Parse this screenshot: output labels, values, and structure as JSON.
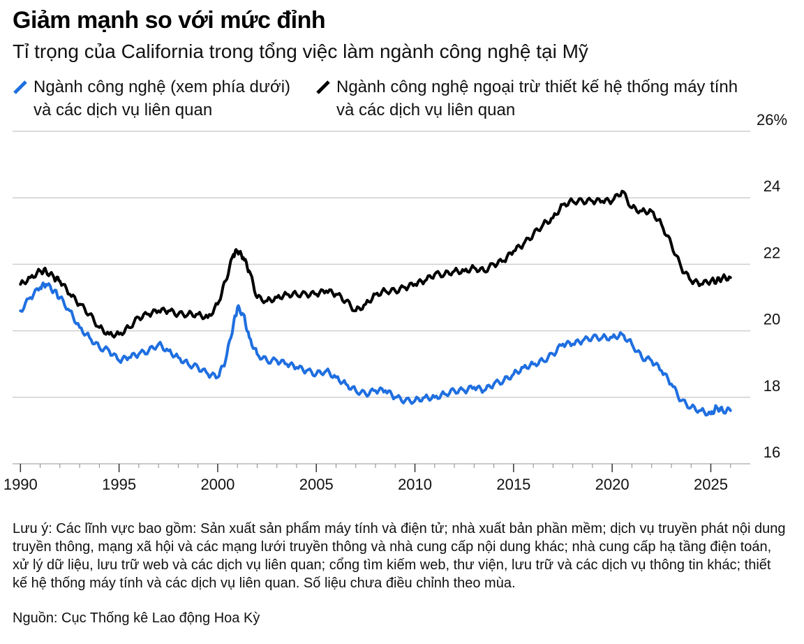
{
  "title": "Giảm mạnh so với mức đỉnh",
  "subtitle": "Tỉ trọng của California trong tổng việc làm ngành công nghệ tại Mỹ",
  "legend": [
    {
      "label_line1": "Ngành công nghệ (xem phía dưới)",
      "label_line2": "và các dịch vụ liên quan",
      "color": "#1f6fe0",
      "icon": "slash-line-icon"
    },
    {
      "label_line1": "Ngành công nghệ ngoại trừ thiết kế hệ thống máy tính",
      "label_line2": "và các dịch vụ liên quan",
      "color": "#000000",
      "icon": "slash-line-icon"
    }
  ],
  "note": "Lưu ý: Các lĩnh vực bao gồm: Sản xuất sản phẩm máy tính và điện tử; nhà xuất bản phần mềm; dịch vụ truyền phát nội dung truyền thông, mạng xã hội và các mạng lưới truyền thông và nhà cung cấp nội dung khác; nhà cung cấp hạ tầng điện toán, xử lý dữ liệu, lưu trữ web và các dịch vụ liên quan; cổng tìm kiếm web, thư viện, lưu trữ và các dịch vụ thông tin khác; thiết kế hệ thống máy tính và các dịch vụ liên quan. Số liệu chưa điều chỉnh theo mùa.",
  "source": "Nguồn: Cục Thống kê Lao động Hoa Kỳ",
  "chart_data": {
    "type": "line",
    "title": "Giảm mạnh so với mức đỉnh",
    "subtitle": "Tỉ trọng của California trong tổng việc làm ngành công nghệ tại Mỹ",
    "xlabel": "",
    "ylabel": "",
    "xlim": [
      1989.6,
      2027.0
    ],
    "ylim": [
      16,
      26
    ],
    "y_ticks": [
      16,
      18,
      20,
      22,
      24,
      26
    ],
    "y_tick_labels": [
      "16",
      "18",
      "20",
      "22",
      "24",
      "26%"
    ],
    "x_ticks": [
      1990,
      1995,
      2000,
      2005,
      2010,
      2015,
      2020,
      2025
    ],
    "x_tick_labels": [
      "1990",
      "1995",
      "2000",
      "2005",
      "2010",
      "2015",
      "2020",
      "2025"
    ],
    "grid": true,
    "series": [
      {
        "name": "Ngành công nghệ (xem phía dưới) và các dịch vụ liên quan",
        "color": "#1f6fe0",
        "x": [
          1990.0,
          1990.5,
          1991.0,
          1991.3,
          1991.7,
          1992.0,
          1992.5,
          1993.0,
          1993.5,
          1994.0,
          1994.5,
          1995.0,
          1995.5,
          1996.0,
          1996.5,
          1997.0,
          1997.5,
          1998.0,
          1998.5,
          1999.0,
          1999.5,
          2000.0,
          2000.4,
          2000.8,
          2001.0,
          2001.3,
          2001.6,
          2002.0,
          2002.5,
          2003.0,
          2003.5,
          2004.0,
          2004.5,
          2005.0,
          2005.5,
          2006.0,
          2006.5,
          2007.0,
          2007.5,
          2008.0,
          2008.5,
          2009.0,
          2009.5,
          2010.0,
          2010.5,
          2011.0,
          2011.5,
          2012.0,
          2012.5,
          2013.0,
          2013.5,
          2014.0,
          2014.5,
          2015.0,
          2015.5,
          2016.0,
          2016.5,
          2017.0,
          2017.5,
          2018.0,
          2018.5,
          2019.0,
          2019.5,
          2020.0,
          2020.5,
          2021.0,
          2021.5,
          2022.0,
          2022.5,
          2023.0,
          2023.5,
          2024.0,
          2024.5,
          2025.0,
          2025.3,
          2025.6,
          2026.0
        ],
        "values": [
          20.6,
          21.0,
          21.3,
          21.4,
          21.2,
          21.0,
          20.6,
          20.1,
          19.8,
          19.5,
          19.4,
          19.1,
          19.2,
          19.3,
          19.4,
          19.6,
          19.4,
          19.2,
          19.0,
          18.9,
          18.7,
          18.6,
          19.1,
          20.2,
          20.7,
          20.5,
          19.8,
          19.3,
          19.1,
          19.1,
          19.0,
          18.9,
          18.8,
          18.7,
          18.8,
          18.6,
          18.4,
          18.2,
          18.1,
          18.2,
          18.2,
          18.0,
          17.9,
          17.9,
          18.0,
          18.0,
          18.1,
          18.2,
          18.2,
          18.3,
          18.2,
          18.4,
          18.5,
          18.7,
          18.9,
          19.0,
          19.1,
          19.3,
          19.6,
          19.6,
          19.7,
          19.8,
          19.8,
          19.8,
          19.9,
          19.6,
          19.2,
          19.1,
          18.8,
          18.4,
          17.9,
          17.7,
          17.6,
          17.5,
          17.7,
          17.6,
          17.6
        ]
      },
      {
        "name": "Ngành công nghệ ngoại trừ thiết kế hệ thống máy tính và các dịch vụ liên quan",
        "color": "#000000",
        "x": [
          1990.0,
          1990.5,
          1991.0,
          1991.3,
          1991.7,
          1992.0,
          1992.5,
          1993.0,
          1993.5,
          1994.0,
          1994.5,
          1995.0,
          1995.5,
          1996.0,
          1996.5,
          1997.0,
          1997.5,
          1998.0,
          1998.5,
          1999.0,
          1999.5,
          2000.0,
          2000.4,
          2000.8,
          2001.0,
          2001.3,
          2001.6,
          2002.0,
          2002.5,
          2003.0,
          2003.5,
          2004.0,
          2004.5,
          2005.0,
          2005.5,
          2006.0,
          2006.5,
          2007.0,
          2007.5,
          2008.0,
          2008.5,
          2009.0,
          2009.5,
          2010.0,
          2010.5,
          2011.0,
          2011.5,
          2012.0,
          2012.5,
          2013.0,
          2013.5,
          2014.0,
          2014.5,
          2015.0,
          2015.5,
          2016.0,
          2016.5,
          2017.0,
          2017.5,
          2018.0,
          2018.5,
          2019.0,
          2019.5,
          2020.0,
          2020.5,
          2021.0,
          2021.5,
          2022.0,
          2022.5,
          2023.0,
          2023.5,
          2024.0,
          2024.5,
          2025.0,
          2025.3,
          2025.6,
          2026.0
        ],
        "values": [
          21.4,
          21.6,
          21.8,
          21.8,
          21.6,
          21.5,
          21.1,
          20.8,
          20.5,
          20.1,
          19.9,
          19.9,
          20.1,
          20.4,
          20.5,
          20.6,
          20.6,
          20.5,
          20.5,
          20.5,
          20.4,
          20.8,
          21.5,
          22.3,
          22.4,
          22.2,
          21.8,
          21.0,
          20.9,
          21.0,
          21.1,
          21.1,
          21.1,
          21.1,
          21.2,
          21.1,
          20.9,
          20.6,
          20.8,
          21.1,
          21.2,
          21.2,
          21.3,
          21.4,
          21.5,
          21.7,
          21.7,
          21.8,
          21.8,
          21.9,
          21.8,
          22.0,
          22.1,
          22.4,
          22.6,
          22.9,
          23.2,
          23.4,
          23.8,
          23.9,
          23.9,
          23.9,
          23.9,
          23.9,
          24.2,
          23.7,
          23.6,
          23.6,
          23.2,
          22.6,
          21.9,
          21.5,
          21.4,
          21.5,
          21.5,
          21.6,
          21.6
        ]
      }
    ]
  }
}
